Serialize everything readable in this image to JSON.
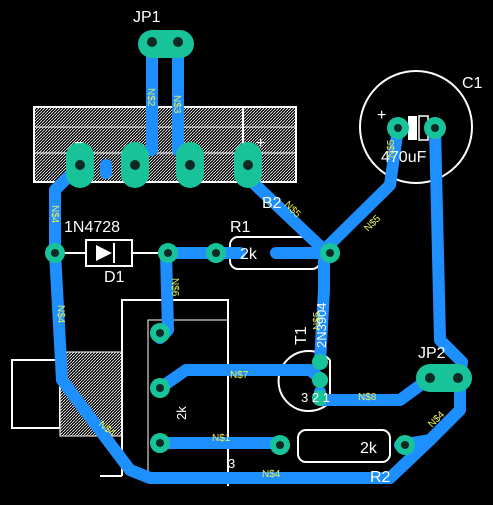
{
  "labels": {
    "jp1": "JP1",
    "c1": "C1",
    "c1_value": "470uF",
    "c1_plus": "+",
    "b2": "B2",
    "r1": "R1",
    "r1_value": "2k",
    "d1": "D1",
    "d1_part": "1N4728",
    "t1": "T1",
    "t1_part": "2N3904",
    "jp2": "JP2",
    "r2": "R2",
    "r2_value": "2k",
    "block_minus": "−",
    "block_plus": "+",
    "pot_label": "2k",
    "pot_pin3": "3",
    "t1_pins": "3 2 1"
  },
  "nets": {
    "n2": "N$2",
    "n3": "N$3",
    "n4a": "N$4",
    "n4b": "N$4",
    "n4c": "N$4",
    "n4d": "N$4",
    "n4e": "N$4",
    "n5a": "N$5",
    "n5b": "N$5",
    "n5c": "N$5",
    "n5d": "N$5",
    "n6": "N$6",
    "n7": "N$7",
    "n8": "N$8",
    "n1": "N$1"
  },
  "colors": {
    "background": "#000000",
    "trace": "#1e8fff",
    "pad": "#18c39a",
    "silkscreen": "#ffffff",
    "net_label": "#e8f05a"
  }
}
